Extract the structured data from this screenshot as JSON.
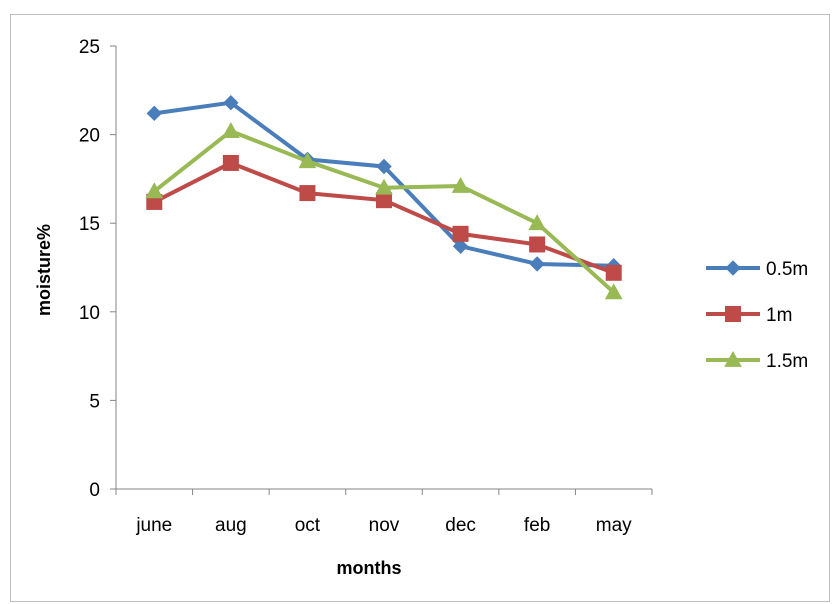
{
  "chart_data": {
    "type": "line",
    "title": "",
    "xlabel": "months",
    "ylabel": "moisture%",
    "categories": [
      "june",
      "aug",
      "oct",
      "nov",
      "dec",
      "feb",
      "may"
    ],
    "ylim": [
      0,
      25
    ],
    "yticks": [
      0,
      5,
      10,
      15,
      20,
      25
    ],
    "grid": false,
    "legend": "right",
    "series": [
      {
        "name": "0.5m",
        "color": "#4a7ebb",
        "marker": "diamond",
        "values": [
          21.2,
          21.8,
          18.6,
          18.2,
          13.7,
          12.7,
          12.6
        ]
      },
      {
        "name": "1m",
        "color": "#be4b48",
        "marker": "square",
        "values": [
          16.2,
          18.4,
          16.7,
          16.3,
          14.4,
          13.8,
          12.2
        ]
      },
      {
        "name": "1.5m",
        "color": "#98b954",
        "marker": "triangle",
        "values": [
          16.8,
          20.2,
          18.5,
          17.0,
          17.1,
          15.0,
          11.1
        ]
      }
    ]
  }
}
